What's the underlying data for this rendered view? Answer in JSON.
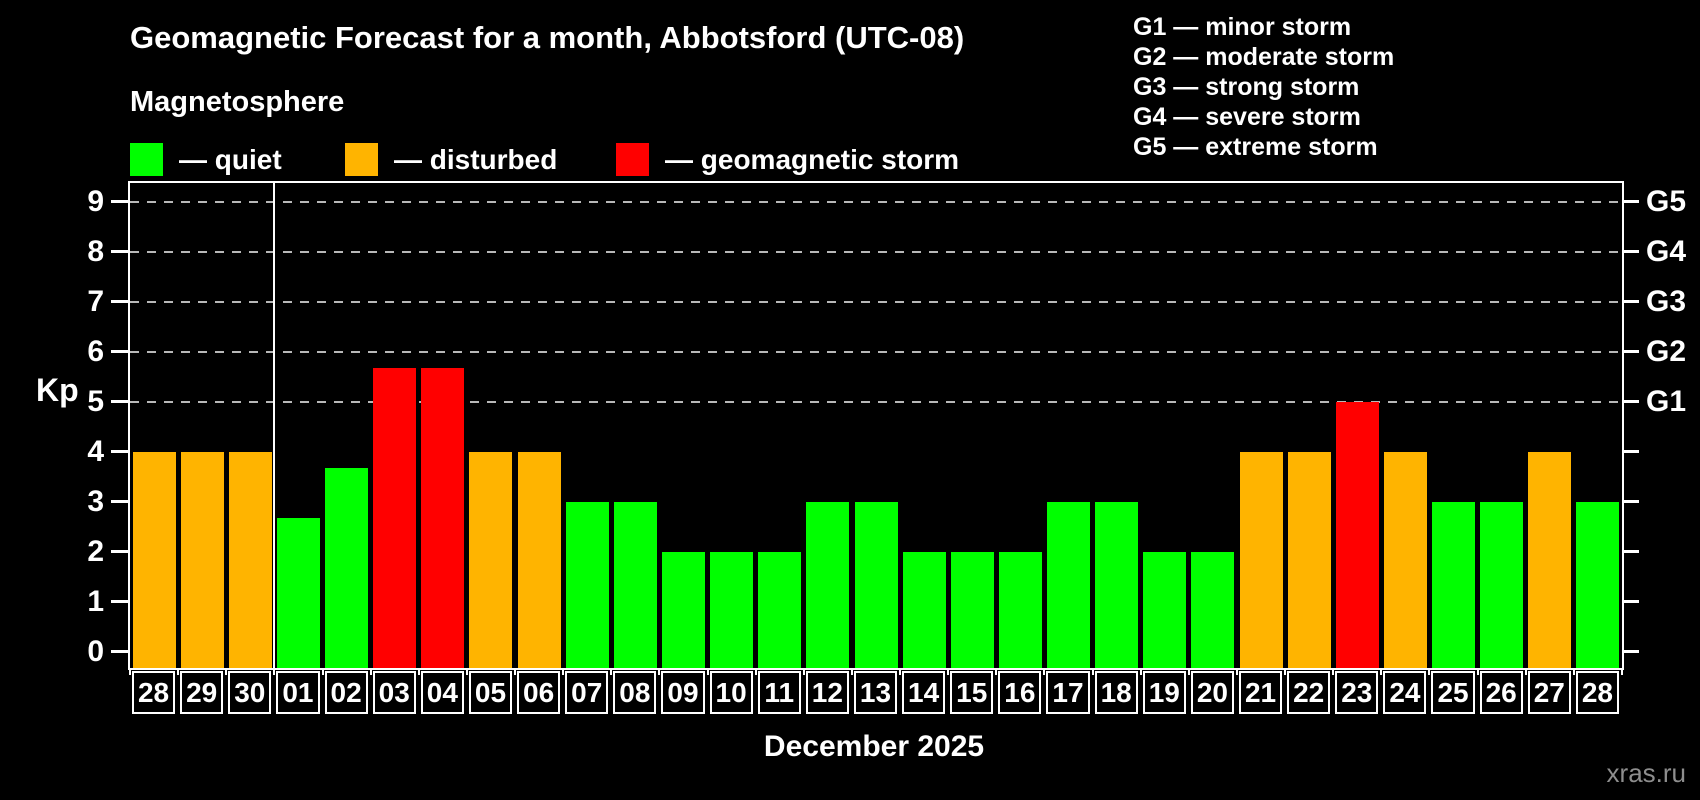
{
  "title": "Geomagnetic Forecast for a month, Abbotsford (UTC-08)",
  "subtitle": "Magnetosphere",
  "legend": {
    "items": [
      {
        "key": "quiet",
        "label": "— quiet",
        "color": "#00ff00"
      },
      {
        "key": "disturbed",
        "label": "— disturbed",
        "color": "#ffb400"
      },
      {
        "key": "storm",
        "label": "— geomagnetic storm",
        "color": "#ff0000"
      }
    ]
  },
  "g_legend": {
    "lines": [
      "G1 — minor storm",
      "G2 — moderate storm",
      "G3 — strong storm",
      "G4 — severe storm",
      "G5 — extreme storm"
    ]
  },
  "watermark": "xras.ru",
  "chart_data": {
    "type": "bar",
    "title": "Geomagnetic Forecast for a month, Abbotsford (UTC-08)",
    "xlabel": "December 2025",
    "ylabel": "Kp",
    "ylim": [
      0,
      9
    ],
    "y_ticks": [
      "0",
      "1",
      "2",
      "3",
      "4",
      "5",
      "6",
      "7",
      "8",
      "9"
    ],
    "right_axis": {
      "labels": [
        "G1",
        "G2",
        "G3",
        "G4",
        "G5"
      ],
      "at_kp": [
        5,
        6,
        7,
        8,
        9
      ]
    },
    "gridlines_at_kp": [
      5,
      6,
      7,
      8,
      9
    ],
    "grid": "dashed horizontal lines at storm levels only",
    "legend_position": "top-left",
    "categories": [
      "28",
      "29",
      "30",
      "01",
      "02",
      "03",
      "04",
      "05",
      "06",
      "07",
      "08",
      "09",
      "10",
      "11",
      "12",
      "13",
      "14",
      "15",
      "16",
      "17",
      "18",
      "19",
      "20",
      "21",
      "22",
      "23",
      "24",
      "25",
      "26",
      "27",
      "28"
    ],
    "values": [
      4,
      4,
      4,
      2.67,
      3.67,
      5.67,
      5.67,
      4,
      4,
      3,
      3,
      2,
      2,
      2,
      3,
      3,
      2,
      2,
      2,
      3,
      3,
      2,
      2,
      4,
      4,
      5,
      4,
      3,
      3,
      4,
      3
    ],
    "statuses": [
      "disturbed",
      "disturbed",
      "disturbed",
      "quiet",
      "quiet",
      "storm",
      "storm",
      "disturbed",
      "disturbed",
      "quiet",
      "quiet",
      "quiet",
      "quiet",
      "quiet",
      "quiet",
      "quiet",
      "quiet",
      "quiet",
      "quiet",
      "quiet",
      "quiet",
      "quiet",
      "quiet",
      "disturbed",
      "disturbed",
      "storm",
      "disturbed",
      "quiet",
      "quiet",
      "disturbed",
      "quiet"
    ],
    "status_colors": {
      "quiet": "#00ff00",
      "disturbed": "#ffb400",
      "storm": "#ff0000"
    },
    "month_boundary_after_index": 2
  }
}
